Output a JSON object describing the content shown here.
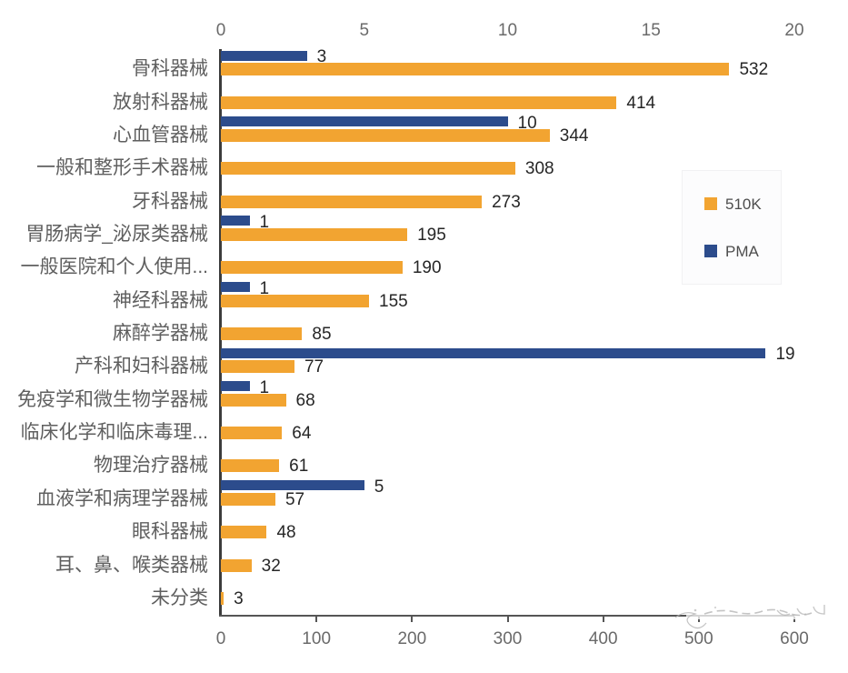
{
  "chart_data": {
    "type": "bar",
    "orientation": "horizontal",
    "title": "",
    "categories": [
      "骨科器械",
      "放射科器械",
      "心血管器械",
      "一般和整形手术器械",
      "牙科器械",
      "胃肠病学_泌尿类器械",
      "一般医院和个人使用...",
      "神经科器械",
      "麻醉学器械",
      "产科和妇科器械",
      "免疫学和微生物学器械",
      "临床化学和临床毒理...",
      "物理治疗器械",
      "血液学和病理学器械",
      "眼科器械",
      "耳、鼻、喉类器械",
      "未分类"
    ],
    "series": [
      {
        "name": "510K",
        "color": "#F2A431",
        "axis": "bottom",
        "values": [
          532,
          414,
          344,
          308,
          273,
          195,
          190,
          155,
          85,
          77,
          68,
          64,
          61,
          57,
          48,
          32,
          3
        ]
      },
      {
        "name": "PMA",
        "color": "#2C4C8C",
        "axis": "top",
        "values": [
          3,
          null,
          10,
          null,
          null,
          1,
          null,
          1,
          null,
          19,
          1,
          null,
          null,
          5,
          null,
          null,
          null
        ]
      }
    ],
    "top_axis": {
      "range": [
        0,
        20
      ],
      "ticks": [
        0,
        5,
        10,
        15,
        20
      ]
    },
    "bottom_axis": {
      "range": [
        0,
        600
      ],
      "ticks": [
        0,
        100,
        200,
        300,
        400,
        500,
        600
      ]
    },
    "legend": [
      {
        "label": "510K",
        "color": "#F2A431"
      },
      {
        "label": "PMA",
        "color": "#2C4C8C"
      }
    ],
    "legend_position": "right",
    "grid": false
  },
  "colors": {
    "background": "#ffffff",
    "axis_line": "#3c3c3c",
    "tick_text": "#6a6a6a",
    "category_text": "#5f5f5f",
    "value_text": "#262626"
  }
}
